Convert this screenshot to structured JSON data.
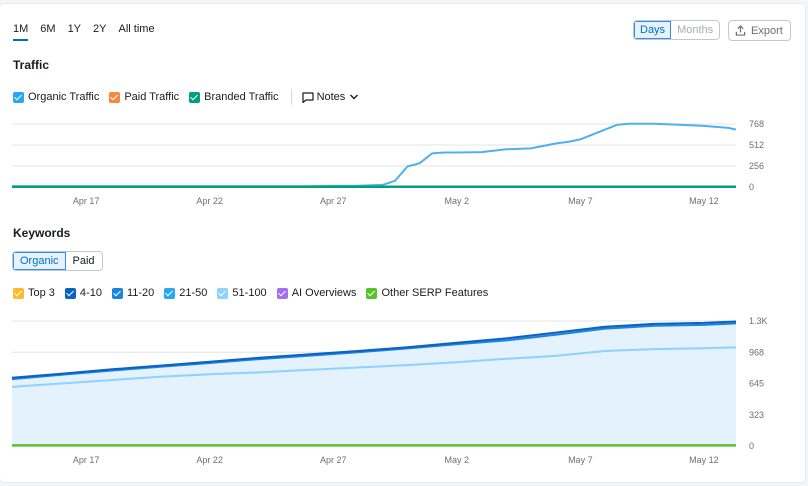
{
  "range_tabs": [
    "1M",
    "6M",
    "1Y",
    "2Y",
    "All time"
  ],
  "range_active": "1M",
  "granularity": {
    "days": "Days",
    "months": "Months"
  },
  "export_label": "Export",
  "traffic": {
    "title": "Traffic",
    "legend": [
      {
        "label": "Organic Traffic",
        "color": "#2aa7f4"
      },
      {
        "label": "Paid Traffic",
        "color": "#f5893d"
      },
      {
        "label": "Branded Traffic",
        "color": "#00a07a"
      }
    ],
    "notes_label": "Notes"
  },
  "keywords": {
    "title": "Keywords",
    "tabs": [
      "Organic",
      "Paid"
    ],
    "legend": [
      {
        "label": "Top 3",
        "color": "#ffb92c"
      },
      {
        "label": "4-10",
        "color": "#0a62c2"
      },
      {
        "label": "11-20",
        "color": "#1b83e0"
      },
      {
        "label": "21-50",
        "color": "#2aa7f4"
      },
      {
        "label": "51-100",
        "color": "#8fd1ff"
      },
      {
        "label": "AI Overviews",
        "color": "#a36ff2"
      },
      {
        "label": "Other SERP Features",
        "color": "#59c12a"
      }
    ]
  },
  "chart_data": [
    {
      "type": "line",
      "title": "Traffic",
      "x_labels": [
        "Apr 17",
        "Apr 22",
        "Apr 27",
        "May 2",
        "May 7",
        "May 12"
      ],
      "x_label_days": [
        3,
        8,
        13,
        18,
        23,
        28
      ],
      "y_ticks": [
        "768",
        "512",
        "256",
        "0"
      ],
      "ylim": [
        0,
        768
      ],
      "x_range": [
        0,
        29.3
      ],
      "grid": true,
      "series": [
        {
          "name": "Organic Traffic",
          "color": "#4fb0ee",
          "x": [
            0,
            4,
            8,
            12,
            14,
            15,
            15.5,
            16,
            16.5,
            17,
            17.5,
            18,
            19,
            20,
            21,
            22,
            22.5,
            23,
            24,
            24.5,
            25,
            26,
            27,
            28,
            29,
            29.3
          ],
          "y": [
            10,
            10,
            10,
            10,
            15,
            25,
            75,
            250,
            290,
            410,
            420,
            420,
            425,
            460,
            470,
            530,
            550,
            580,
            700,
            760,
            770,
            770,
            760,
            745,
            720,
            700
          ]
        },
        {
          "name": "Branded Traffic",
          "color": "#00a07a",
          "x": [
            0,
            29.3
          ],
          "y": [
            2,
            2
          ]
        }
      ]
    },
    {
      "type": "area",
      "title": "Keywords",
      "x_labels": [
        "Apr 17",
        "Apr 22",
        "Apr 27",
        "May 2",
        "May 7",
        "May 12"
      ],
      "x_label_days": [
        3,
        8,
        13,
        18,
        23,
        28
      ],
      "y_ticks": [
        "1.3K",
        "968",
        "645",
        "323",
        "0"
      ],
      "ylim": [
        0,
        1290
      ],
      "x_range": [
        0,
        29.3
      ],
      "grid": true,
      "series": [
        {
          "name": "4-10",
          "color": "#0a62c2",
          "x": [
            0,
            2,
            4,
            6,
            8,
            10,
            12,
            14,
            16,
            18,
            20,
            22,
            24,
            26,
            28,
            29.3
          ],
          "y": [
            705,
            745,
            790,
            830,
            870,
            910,
            945,
            980,
            1020,
            1065,
            1110,
            1170,
            1230,
            1260,
            1270,
            1285
          ]
        },
        {
          "name": "11-20",
          "color": "#1b83e0",
          "x": [
            0,
            2,
            4,
            6,
            8,
            10,
            12,
            14,
            16,
            18,
            20,
            22,
            24,
            26,
            28,
            29.3
          ],
          "y": [
            690,
            735,
            778,
            818,
            857,
            897,
            932,
            967,
            1007,
            1050,
            1090,
            1148,
            1212,
            1240,
            1250,
            1265
          ]
        },
        {
          "name": "51-100",
          "color": "#8fd1ff",
          "x": [
            0,
            2,
            4,
            6,
            8,
            10,
            12,
            14,
            16,
            18,
            20,
            22,
            24,
            26,
            28,
            29.3
          ],
          "y": [
            610,
            645,
            680,
            715,
            740,
            760,
            785,
            810,
            835,
            865,
            900,
            930,
            980,
            1000,
            1008,
            1018
          ]
        },
        {
          "name": "Other SERP Features",
          "color": "#59c12a",
          "x": [
            0,
            29.3
          ],
          "y": [
            6,
            6
          ]
        }
      ]
    }
  ]
}
